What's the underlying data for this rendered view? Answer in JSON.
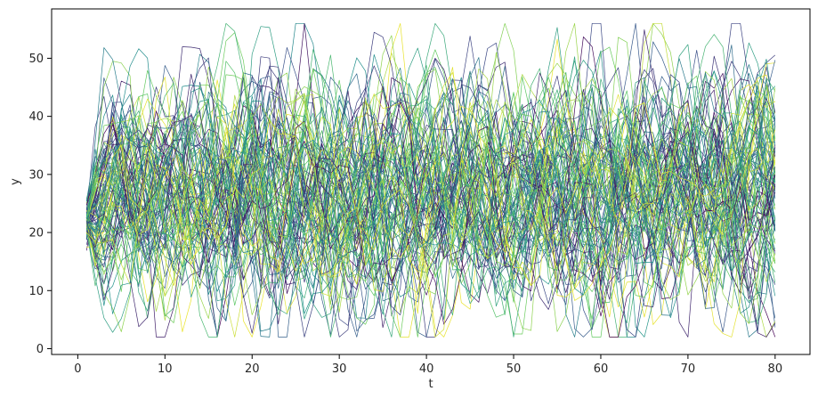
{
  "chart_data": {
    "type": "line",
    "title": "",
    "xlabel": "t",
    "ylabel": "y",
    "xlim": [
      -3,
      84
    ],
    "ylim": [
      -1,
      58.5
    ],
    "xticks": [
      0,
      10,
      20,
      30,
      40,
      50,
      60,
      70,
      80
    ],
    "yticks": [
      0,
      10,
      20,
      30,
      40,
      50
    ],
    "grid": false,
    "legend": "none",
    "colormap": [
      "#440154",
      "#3b528b",
      "#21918c",
      "#5ec962",
      "#fde725"
    ],
    "series_count": 100,
    "t_range": [
      1,
      80
    ],
    "y_start": 22,
    "y_mean": 27,
    "annotations": []
  }
}
